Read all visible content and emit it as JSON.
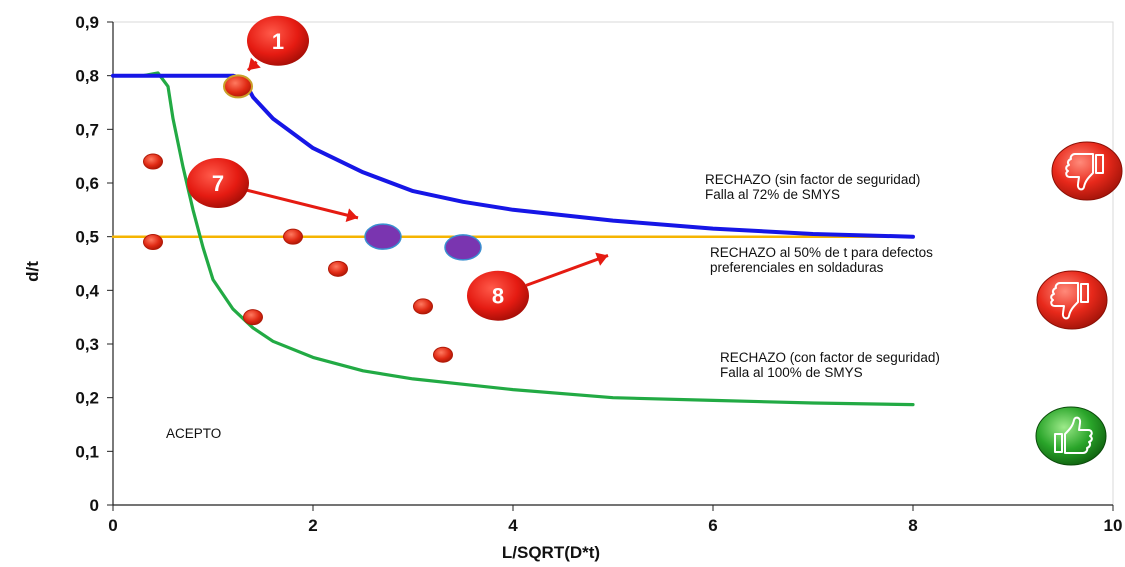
{
  "chart_data": {
    "type": "scatter",
    "xlabel": "L/SQRT(D*t)",
    "ylabel": "d/t",
    "xlim": [
      0,
      10
    ],
    "ylim": [
      0,
      0.9
    ],
    "x_ticks": [
      0,
      2,
      4,
      6,
      8,
      10
    ],
    "y_ticks": [
      0,
      0.1,
      0.2,
      0.3,
      0.4,
      0.5,
      0.6,
      0.7,
      0.8,
      0.9
    ],
    "x_tick_labels": [
      "0",
      "2",
      "4",
      "6",
      "8",
      "10"
    ],
    "y_tick_labels": [
      "0",
      "0,1",
      "0,2",
      "0,3",
      "0,4",
      "0,5",
      "0,6",
      "0,7",
      "0,8",
      "0,9"
    ],
    "grid": false,
    "colors": {
      "upper_curve": "#1616e6",
      "lower_curve": "#22aa44",
      "threshold": "#f5b400",
      "defects": "#e8291b",
      "highlighted": "#7a35b0",
      "badge": "#ee1c1c"
    },
    "curves": [
      {
        "key": "upper",
        "points": [
          [
            0,
            0.8
          ],
          [
            1.2,
            0.8
          ],
          [
            1.3,
            0.795
          ],
          [
            1.4,
            0.76
          ],
          [
            1.6,
            0.72
          ],
          [
            2.0,
            0.665
          ],
          [
            2.5,
            0.62
          ],
          [
            3.0,
            0.585
          ],
          [
            3.5,
            0.565
          ],
          [
            4.0,
            0.55
          ],
          [
            5.0,
            0.53
          ],
          [
            6.0,
            0.515
          ],
          [
            7.0,
            0.505
          ],
          [
            8.0,
            0.5
          ]
        ]
      },
      {
        "key": "lower",
        "points": [
          [
            0,
            0.8
          ],
          [
            0.3,
            0.8
          ],
          [
            0.45,
            0.805
          ],
          [
            0.55,
            0.78
          ],
          [
            0.6,
            0.72
          ],
          [
            0.7,
            0.63
          ],
          [
            0.8,
            0.55
          ],
          [
            0.9,
            0.48
          ],
          [
            1.0,
            0.42
          ],
          [
            1.2,
            0.365
          ],
          [
            1.4,
            0.33
          ],
          [
            1.6,
            0.305
          ],
          [
            2.0,
            0.275
          ],
          [
            2.5,
            0.25
          ],
          [
            3.0,
            0.235
          ],
          [
            4.0,
            0.215
          ],
          [
            5.0,
            0.2
          ],
          [
            6.0,
            0.195
          ],
          [
            7.0,
            0.19
          ],
          [
            8.0,
            0.187
          ]
        ]
      },
      {
        "key": "threshold",
        "points": [
          [
            0,
            0.5
          ],
          [
            8.0,
            0.5
          ]
        ]
      }
    ],
    "defect_points": [
      {
        "x": 0.4,
        "y": 0.64
      },
      {
        "x": 0.4,
        "y": 0.49
      },
      {
        "x": 0.95,
        "y": 0.61
      },
      {
        "x": 1.4,
        "y": 0.35
      },
      {
        "x": 1.8,
        "y": 0.5
      },
      {
        "x": 2.25,
        "y": 0.44
      },
      {
        "x": 3.1,
        "y": 0.37
      },
      {
        "x": 3.3,
        "y": 0.28
      },
      {
        "x": 1.25,
        "y": 0.78
      }
    ],
    "highlighted_points": [
      {
        "x": 2.7,
        "y": 0.5
      },
      {
        "x": 3.5,
        "y": 0.48
      }
    ],
    "markers": [
      {
        "label": "1",
        "x": 1.65,
        "y": 0.865,
        "target_x": 1.35,
        "target_y": 0.81
      },
      {
        "label": "7",
        "x": 1.05,
        "y": 0.6,
        "target_x": 2.45,
        "target_y": 0.535
      },
      {
        "label": "8",
        "x": 3.85,
        "y": 0.39,
        "target_x": 4.95,
        "target_y": 0.465
      }
    ],
    "annotations": [
      {
        "key": "upper",
        "lines": [
          "RECHAZO (sin factor de seguridad)",
          "Falla al 72% de SMYS"
        ]
      },
      {
        "key": "mid",
        "lines": [
          "RECHAZO al 50% de t para defectos",
          "preferenciales en soldaduras"
        ]
      },
      {
        "key": "lower",
        "lines": [
          "RECHAZO (con factor de seguridad)",
          "Falla al 100% de SMYS"
        ]
      },
      {
        "key": "accept",
        "lines": [
          "ACEPTO"
        ]
      }
    ],
    "icons": [
      {
        "name": "thumb-down-icon",
        "color": "red"
      },
      {
        "name": "thumb-down-icon",
        "color": "red"
      },
      {
        "name": "thumb-up-icon",
        "color": "green"
      }
    ]
  }
}
